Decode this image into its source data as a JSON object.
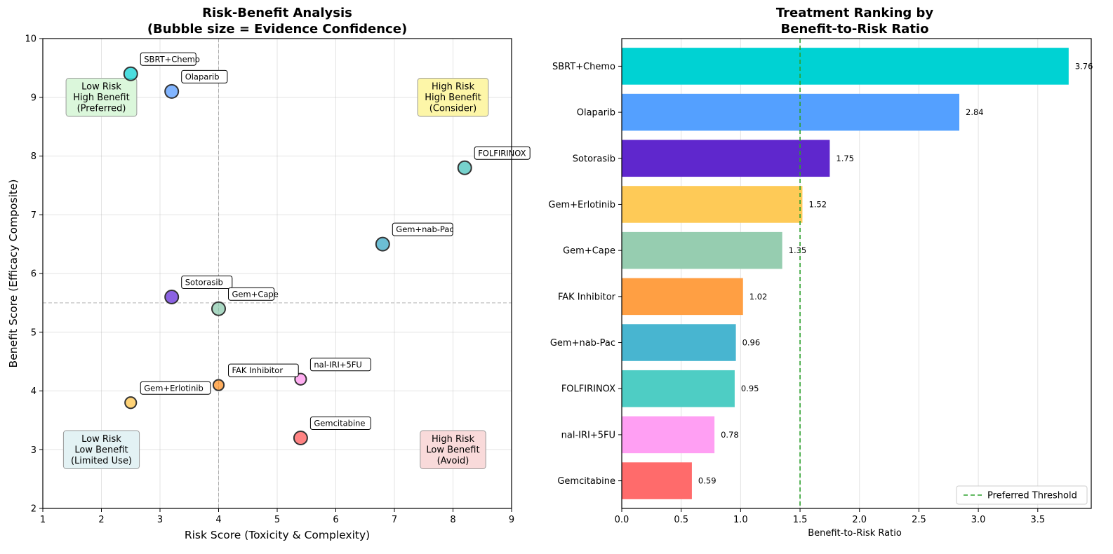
{
  "chart_data": [
    {
      "type": "scatter",
      "title": "Risk-Benefit Analysis\n(Bubble size = Evidence Confidence)",
      "xlabel": "Risk Score (Toxicity & Complexity)",
      "ylabel": "Benefit Score (Efficacy Composite)",
      "xlim": [
        1,
        9
      ],
      "ylim": [
        2,
        10
      ],
      "xticks": [
        1,
        2,
        3,
        4,
        5,
        6,
        7,
        8,
        9
      ],
      "yticks": [
        2,
        3,
        4,
        5,
        6,
        7,
        8,
        9,
        10
      ],
      "grid": true,
      "reference_lines": {
        "x": 4,
        "y": 5.5
      },
      "points": [
        {
          "name": "SBRT+Chemo",
          "x": 2.5,
          "y": 9.4,
          "color": "#00CED1",
          "size": 1.0
        },
        {
          "name": "Olaparib",
          "x": 3.2,
          "y": 9.1,
          "color": "#4D96FF",
          "size": 1.0
        },
        {
          "name": "FOLFIRINOX",
          "x": 8.2,
          "y": 7.8,
          "color": "#3DBFB8",
          "size": 1.0
        },
        {
          "name": "Gem+nab-Pac",
          "x": 6.8,
          "y": 6.5,
          "color": "#2EA3C2",
          "size": 1.0
        },
        {
          "name": "Sotorasib",
          "x": 3.2,
          "y": 5.6,
          "color": "#5A1FD6",
          "size": 1.0
        },
        {
          "name": "Gem+Cape",
          "x": 4.0,
          "y": 5.4,
          "color": "#86C7AA",
          "size": 1.0
        },
        {
          "name": "nal-IRI+5FU",
          "x": 5.4,
          "y": 4.2,
          "color": "#FF8CEB",
          "size": 0.85
        },
        {
          "name": "FAK Inhibitor",
          "x": 4.0,
          "y": 4.1,
          "color": "#FF8C1A",
          "size": 0.8
        },
        {
          "name": "Gem+Erlotinib",
          "x": 2.5,
          "y": 3.8,
          "color": "#FFC13D",
          "size": 0.85
        },
        {
          "name": "Gemcitabine",
          "x": 5.4,
          "y": 3.2,
          "color": "#FF4F4F",
          "size": 1.0
        }
      ],
      "quadrants": [
        {
          "text": "Low Risk\nHigh Benefit\n(Preferred)",
          "x": 2.0,
          "y": 9.0,
          "color": "#d9f7d9"
        },
        {
          "text": "High Risk\nHigh Benefit\n(Consider)",
          "x": 8.0,
          "y": 9.0,
          "color": "#fdf6a3"
        },
        {
          "text": "Low Risk\nLow Benefit\n(Limited Use)",
          "x": 2.0,
          "y": 3.0,
          "color": "#e2f1f3"
        },
        {
          "text": "High Risk\nLow Benefit\n(Avoid)",
          "x": 8.0,
          "y": 3.0,
          "color": "#f9d8d8"
        }
      ]
    },
    {
      "type": "bar",
      "orientation": "horizontal",
      "title": "Treatment Ranking by\nBenefit-to-Risk Ratio",
      "xlabel": "Benefit-to-Risk Ratio",
      "ylabel": "",
      "xlim": [
        0,
        3.95
      ],
      "xticks": [
        "0.0",
        "0.5",
        "1.0",
        "1.5",
        "2.0",
        "2.5",
        "3.0",
        "3.5"
      ],
      "grid": true,
      "threshold": {
        "value": 1.5,
        "label": "Preferred Threshold",
        "color": "#2ca02c"
      },
      "legend_position": "lower-right",
      "categories": [
        "SBRT+Chemo",
        "Olaparib",
        "Sotorasib",
        "Gem+Erlotinib",
        "Gem+Cape",
        "FAK Inhibitor",
        "Gem+nab-Pac",
        "FOLFIRINOX",
        "nal-IRI+5FU",
        "Gemcitabine"
      ],
      "values": [
        3.76,
        2.84,
        1.75,
        1.52,
        1.35,
        1.02,
        0.96,
        0.95,
        0.78,
        0.59
      ],
      "value_labels": [
        "3.76",
        "2.84",
        "1.75",
        "1.52",
        "1.35",
        "1.02",
        "0.96",
        "0.95",
        "0.78",
        "0.59"
      ],
      "colors": [
        "#00D2D3",
        "#54A0FF",
        "#5F27CD",
        "#FECA57",
        "#96CDB0",
        "#FF9F43",
        "#48B5D0",
        "#4ECDC4",
        "#FF9FF3",
        "#FF6B6B"
      ]
    }
  ]
}
